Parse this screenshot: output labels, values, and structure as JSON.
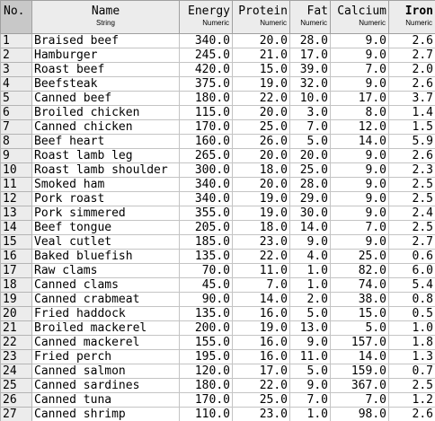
{
  "columns": [
    {
      "name": "No.",
      "type": ""
    },
    {
      "name": "Name",
      "type": "String"
    },
    {
      "name": "Energy",
      "type": "Numeric"
    },
    {
      "name": "Protein",
      "type": "Numeric"
    },
    {
      "name": "Fat",
      "type": "Numeric"
    },
    {
      "name": "Calcium",
      "type": "Numeric"
    },
    {
      "name": "Iron",
      "type": "Numeric"
    }
  ],
  "rows": [
    [
      "1",
      "Braised beef",
      "340.0",
      "20.0",
      "28.0",
      "9.0",
      "2.6"
    ],
    [
      "2",
      "Hamburger",
      "245.0",
      "21.0",
      "17.0",
      "9.0",
      "2.7"
    ],
    [
      "3",
      "Roast beef",
      "420.0",
      "15.0",
      "39.0",
      "7.0",
      "2.0"
    ],
    [
      "4",
      "Beefsteak",
      "375.0",
      "19.0",
      "32.0",
      "9.0",
      "2.6"
    ],
    [
      "5",
      "Canned beef",
      "180.0",
      "22.0",
      "10.0",
      "17.0",
      "3.7"
    ],
    [
      "6",
      "Broiled chicken",
      "115.0",
      "20.0",
      "3.0",
      "8.0",
      "1.4"
    ],
    [
      "7",
      "Canned chicken",
      "170.0",
      "25.0",
      "7.0",
      "12.0",
      "1.5"
    ],
    [
      "8",
      "Beef heart",
      "160.0",
      "26.0",
      "5.0",
      "14.0",
      "5.9"
    ],
    [
      "9",
      "Roast lamb leg",
      "265.0",
      "20.0",
      "20.0",
      "9.0",
      "2.6"
    ],
    [
      "10",
      "Roast lamb shoulder",
      "300.0",
      "18.0",
      "25.0",
      "9.0",
      "2.3"
    ],
    [
      "11",
      "Smoked ham",
      "340.0",
      "20.0",
      "28.0",
      "9.0",
      "2.5"
    ],
    [
      "12",
      "Pork roast",
      "340.0",
      "19.0",
      "29.0",
      "9.0",
      "2.5"
    ],
    [
      "13",
      "Pork simmered",
      "355.0",
      "19.0",
      "30.0",
      "9.0",
      "2.4"
    ],
    [
      "14",
      "Beef tongue",
      "205.0",
      "18.0",
      "14.0",
      "7.0",
      "2.5"
    ],
    [
      "15",
      "Veal cutlet",
      "185.0",
      "23.0",
      "9.0",
      "9.0",
      "2.7"
    ],
    [
      "16",
      "Baked bluefish",
      "135.0",
      "22.0",
      "4.0",
      "25.0",
      "0.6"
    ],
    [
      "17",
      "Raw clams",
      "70.0",
      "11.0",
      "1.0",
      "82.0",
      "6.0"
    ],
    [
      "18",
      "Canned clams",
      "45.0",
      "7.0",
      "1.0",
      "74.0",
      "5.4"
    ],
    [
      "19",
      "Canned crabmeat",
      "90.0",
      "14.0",
      "2.0",
      "38.0",
      "0.8"
    ],
    [
      "20",
      "Fried haddock",
      "135.0",
      "16.0",
      "5.0",
      "15.0",
      "0.5"
    ],
    [
      "21",
      "Broiled mackerel",
      "200.0",
      "19.0",
      "13.0",
      "5.0",
      "1.0"
    ],
    [
      "22",
      "Canned mackerel",
      "155.0",
      "16.0",
      "9.0",
      "157.0",
      "1.8"
    ],
    [
      "23",
      "Fried perch",
      "195.0",
      "16.0",
      "11.0",
      "14.0",
      "1.3"
    ],
    [
      "24",
      "Canned salmon",
      "120.0",
      "17.0",
      "5.0",
      "159.0",
      "0.7"
    ],
    [
      "25",
      "Canned sardines",
      "180.0",
      "22.0",
      "9.0",
      "367.0",
      "2.5"
    ],
    [
      "26",
      "Canned tuna",
      "170.0",
      "25.0",
      "7.0",
      "7.0",
      "1.2"
    ],
    [
      "27",
      "Canned shrimp",
      "110.0",
      "23.0",
      "1.0",
      "98.0",
      "2.6"
    ]
  ]
}
